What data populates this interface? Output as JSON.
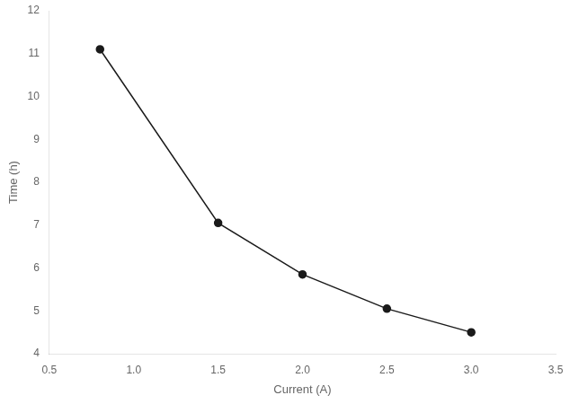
{
  "chart_data": {
    "type": "line",
    "x": [
      0.8,
      1.5,
      2.0,
      2.5,
      3.0
    ],
    "values": [
      11.1,
      7.05,
      5.85,
      5.05,
      4.5
    ],
    "xlim": [
      0.5,
      3.5
    ],
    "xticks": [
      0.5,
      {
        "value": 1.0,
        "label": "1.0"
      },
      1.5,
      {
        "value": 2.0,
        "label": "2.0"
      },
      2.5,
      {
        "value": 3.0,
        "label": "3.0"
      },
      3.5
    ],
    "ylim": [
      4,
      12
    ],
    "yticks": [
      4,
      5,
      6,
      7,
      8,
      9,
      10,
      11,
      12
    ],
    "xlabel": "Current (A)",
    "ylabel": "Time (h)",
    "color": "#1a1a1a",
    "marker": "circle",
    "grid": false
  }
}
